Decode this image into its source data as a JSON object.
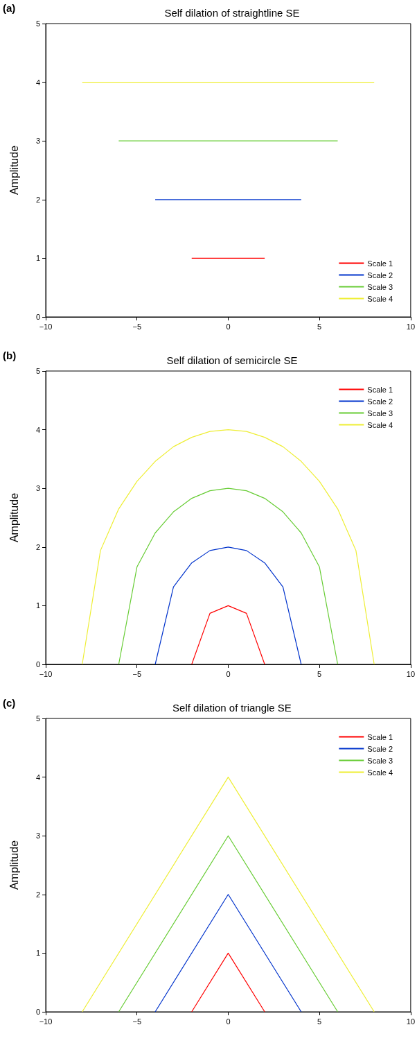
{
  "chart_data": [
    {
      "type": "line",
      "title": "Self dilation of straightline SE",
      "ylabel": "Amplitude",
      "annotations": [
        "(a)"
      ],
      "xlim": [
        -10,
        10
      ],
      "xticks": [
        -10,
        -5,
        0,
        5,
        10
      ],
      "ylim": [
        0,
        5
      ],
      "yticks": [
        0,
        1,
        2,
        3,
        4,
        5
      ],
      "legend": "bottom right",
      "marker": "none",
      "grid": false,
      "series": [
        {
          "name": "Scale 1",
          "color": "#ff0000",
          "x": [
            -2,
            2
          ],
          "values": [
            1,
            1
          ]
        },
        {
          "name": "Scale 2",
          "color": "#0033cc",
          "x": [
            -4,
            4
          ],
          "values": [
            2,
            2
          ]
        },
        {
          "name": "Scale 3",
          "color": "#66cc33",
          "x": [
            -6,
            6
          ],
          "values": [
            3,
            3
          ]
        },
        {
          "name": "Scale 4",
          "color": "#eeee33",
          "x": [
            -8,
            8
          ],
          "values": [
            4,
            4
          ]
        }
      ]
    },
    {
      "type": "line",
      "title": "Self dilation of semicircle SE",
      "ylabel": "Amplitude",
      "annotations": [
        "(b)"
      ],
      "xlim": [
        -10,
        10
      ],
      "xticks": [
        -10,
        -5,
        0,
        5,
        10
      ],
      "ylim": [
        0,
        5
      ],
      "yticks": [
        0,
        1,
        2,
        3,
        4,
        5
      ],
      "legend": "top right",
      "marker": "none",
      "grid": false,
      "series": [
        {
          "name": "Scale 1",
          "color": "#ff0000",
          "x": [
            -2,
            -1,
            0,
            1,
            2
          ],
          "values": [
            0,
            0.87,
            1,
            0.87,
            0
          ]
        },
        {
          "name": "Scale 2",
          "color": "#0033cc",
          "x": [
            -4,
            -3,
            -2,
            -1,
            0,
            1,
            2,
            3,
            4
          ],
          "values": [
            0,
            1.32,
            1.73,
            1.94,
            2,
            1.94,
            1.73,
            1.32,
            0
          ]
        },
        {
          "name": "Scale 3",
          "color": "#66cc33",
          "x": [
            -6,
            -5,
            -4,
            -3,
            -2,
            -1,
            0,
            1,
            2,
            3,
            4,
            5,
            6
          ],
          "values": [
            0,
            1.66,
            2.24,
            2.6,
            2.83,
            2.96,
            3,
            2.96,
            2.83,
            2.6,
            2.24,
            1.66,
            0
          ]
        },
        {
          "name": "Scale 4",
          "color": "#eeee33",
          "x": [
            -8,
            -7,
            -6,
            -5,
            -4,
            -3,
            -2,
            -1,
            0,
            1,
            2,
            3,
            4,
            5,
            6,
            7,
            8
          ],
          "values": [
            0,
            1.94,
            2.65,
            3.12,
            3.46,
            3.71,
            3.87,
            3.97,
            4,
            3.97,
            3.87,
            3.71,
            3.46,
            3.12,
            2.65,
            1.94,
            0
          ]
        }
      ]
    },
    {
      "type": "line",
      "title": "Self dilation of triangle SE",
      "ylabel": "Amplitude",
      "annotations": [
        "(c)"
      ],
      "xlim": [
        -10,
        10
      ],
      "xticks": [
        -10,
        -5,
        0,
        5,
        10
      ],
      "ylim": [
        0,
        5
      ],
      "yticks": [
        0,
        1,
        2,
        3,
        4,
        5
      ],
      "legend": "top right",
      "marker": "none",
      "grid": false,
      "series": [
        {
          "name": "Scale 1",
          "color": "#ff0000",
          "x": [
            -2,
            0,
            2
          ],
          "values": [
            0,
            1,
            0
          ]
        },
        {
          "name": "Scale 2",
          "color": "#0033cc",
          "x": [
            -4,
            0,
            4
          ],
          "values": [
            0,
            2,
            0
          ]
        },
        {
          "name": "Scale 3",
          "color": "#66cc33",
          "x": [
            -6,
            0,
            6
          ],
          "values": [
            0,
            3,
            0
          ]
        },
        {
          "name": "Scale 4",
          "color": "#eeee33",
          "x": [
            -8,
            0,
            8
          ],
          "values": [
            0,
            4,
            0
          ]
        }
      ]
    }
  ]
}
